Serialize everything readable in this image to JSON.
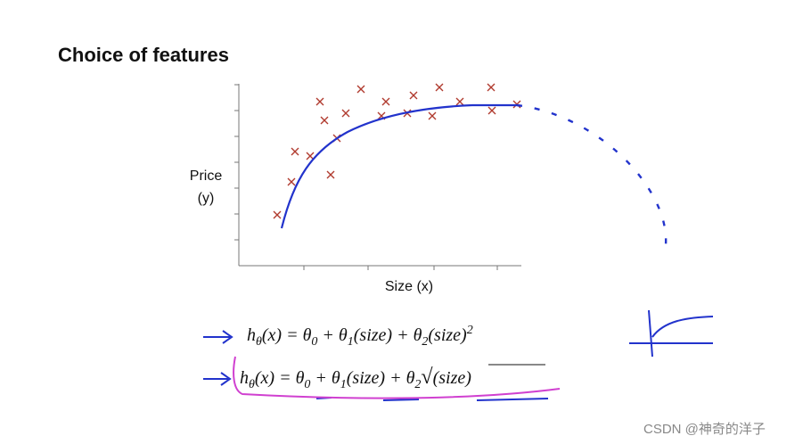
{
  "title": "Choice of features",
  "plot": {
    "y_label_lines": [
      "Price",
      "(y)"
    ],
    "x_label": "Size (x)"
  },
  "formulas": [
    [
      "h",
      "θ",
      "(x) = θ",
      "0",
      " + θ",
      "1",
      "(size) + θ",
      "2",
      "(size)",
      "2"
    ],
    [
      "h",
      "θ",
      "(x) = θ",
      "0",
      " + θ",
      "1",
      "(size) + θ",
      "2",
      "√",
      "(size)"
    ]
  ],
  "watermark": "CSDN @神奇的洋子"
}
